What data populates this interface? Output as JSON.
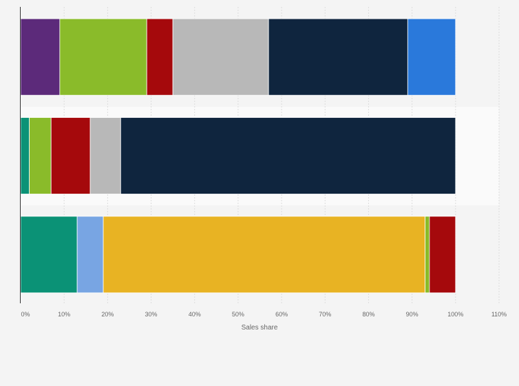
{
  "chart_data": {
    "type": "bar",
    "orientation": "horizontal",
    "stacked": true,
    "xlabel": "Sales share",
    "ylabel": "",
    "xlim": [
      0,
      110
    ],
    "x_ticks": [
      "0%",
      "10%",
      "20%",
      "30%",
      "40%",
      "50%",
      "60%",
      "70%",
      "80%",
      "90%",
      "100%",
      "110%"
    ],
    "grid": "vertical",
    "legend": "none",
    "bars": [
      {
        "segments": [
          {
            "value": 9,
            "color": "#5c2a7a"
          },
          {
            "value": 20,
            "color": "#8abb2a"
          },
          {
            "value": 6,
            "color": "#a5090c"
          },
          {
            "value": 22,
            "color": "#b8b8b8"
          },
          {
            "value": 32,
            "color": "#0f253e"
          },
          {
            "value": 11,
            "color": "#2a79db"
          }
        ]
      },
      {
        "segments": [
          {
            "value": 2,
            "color": "#0b9276"
          },
          {
            "value": 5,
            "color": "#8abb2a"
          },
          {
            "value": 9,
            "color": "#a5090c"
          },
          {
            "value": 7,
            "color": "#b8b8b8"
          },
          {
            "value": 77,
            "color": "#0f253e"
          }
        ]
      },
      {
        "segments": [
          {
            "value": 13,
            "color": "#0b9276"
          },
          {
            "value": 6,
            "color": "#78a5e3"
          },
          {
            "value": 74,
            "color": "#e8b323"
          },
          {
            "value": 1,
            "color": "#8abb2a"
          },
          {
            "value": 6,
            "color": "#a5090c"
          }
        ]
      }
    ]
  }
}
